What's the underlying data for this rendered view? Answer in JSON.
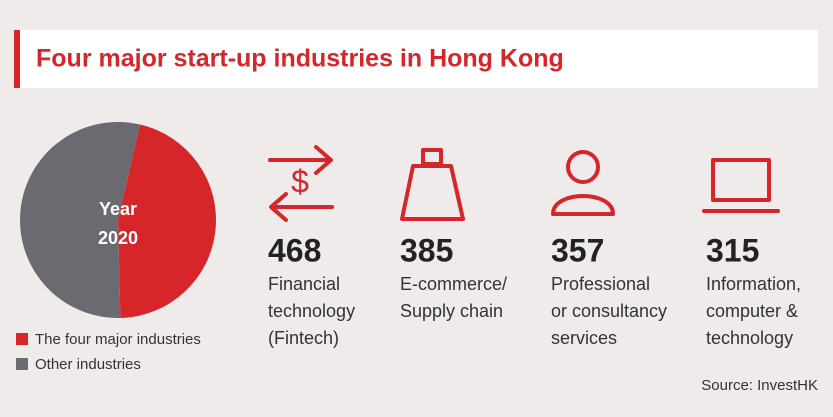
{
  "title": "Four major start-up industries in Hong Kong",
  "chart_data": {
    "type": "pie",
    "center_label": [
      "Year",
      "2020"
    ],
    "categories": [
      "The four major industries",
      "Other industries"
    ],
    "values": [
      46,
      54
    ],
    "colors": [
      "#d7262a",
      "#6b6a70"
    ]
  },
  "industries": [
    {
      "number": "468",
      "label": [
        "Financial",
        "technology",
        "(Fintech)"
      ]
    },
    {
      "number": "385",
      "label": [
        "E-commerce/",
        "Supply chain"
      ]
    },
    {
      "number": "357",
      "label": [
        "Professional",
        "or consultancy",
        "services"
      ]
    },
    {
      "number": "315",
      "label": [
        "Information,",
        "computer &",
        "technology"
      ]
    }
  ],
  "source": "Source: InvestHK"
}
